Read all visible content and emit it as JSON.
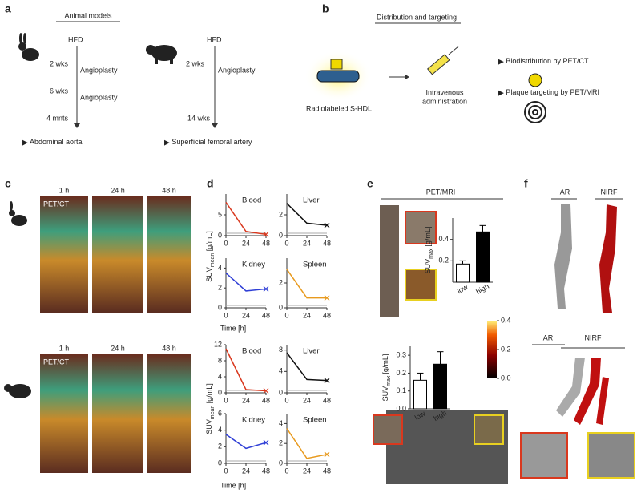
{
  "panels": {
    "a": {
      "letter": "a",
      "title": "Animal models",
      "rabbit": {
        "diet": "HFD",
        "t1": "2 wks",
        "proc1": "Angioplasty",
        "t2": "6 wks",
        "proc2": "Angioplasty",
        "t3": "4 mnts",
        "site": "Abdominal aorta"
      },
      "pig": {
        "diet": "HFD",
        "t1": "2 wks",
        "proc1": "Angioplasty",
        "t2": "14 wks",
        "site": "Superficial femoral artery"
      }
    },
    "b": {
      "letter": "b",
      "title": "Distribution and targeting",
      "agent": "Radiolabeled S-HDL",
      "route1": "Intravenous",
      "route2": "administration",
      "readout1": "Biodistribution by PET/CT",
      "readout2": "Plaque targeting by PET/MRI"
    },
    "c": {
      "letter": "c",
      "times": [
        "1 h",
        "24 h",
        "48 h"
      ],
      "modality": "PET/CT"
    },
    "d": {
      "letter": "d",
      "y_label": "SUV",
      "y_label_sub": "mean",
      "y_label_unit": "[g/mL]",
      "x_label": "Time [h]"
    },
    "e": {
      "letter": "e",
      "modality": "PET/MRI",
      "colorbar": {
        "lim": [
          0,
          0.4
        ],
        "ticks": [
          0.4,
          0.2,
          {
            "value": 0,
            "label": "0.0"
          }
        ]
      }
    },
    "f": {
      "letter": "f",
      "top": [
        "AR",
        "NIRF"
      ],
      "bottom": [
        "AR",
        "NIRF"
      ]
    }
  },
  "chart_data": [
    {
      "type": "line",
      "title": "Blood",
      "color": "#d9381e",
      "x": [
        0,
        24,
        48
      ],
      "values": [
        8,
        1,
        0.3
      ],
      "xlim": [
        0,
        48
      ],
      "xticks": [
        0,
        24,
        48
      ],
      "ylim": [
        0,
        10
      ],
      "yticks": [
        0,
        5
      ]
    },
    {
      "type": "line",
      "title": "Liver",
      "color": "#111111",
      "x": [
        0,
        24,
        48
      ],
      "values": [
        3.1,
        1.2,
        1
      ],
      "xlim": [
        0,
        48
      ],
      "xticks": [
        0,
        24,
        48
      ],
      "ylim": [
        0,
        4
      ],
      "yticks": [
        0,
        2
      ]
    },
    {
      "type": "line",
      "title": "Kidney",
      "color": "#2f3fd6",
      "x": [
        0,
        24,
        48
      ],
      "values": [
        3.5,
        1.7,
        1.9
      ],
      "xlim": [
        0,
        48
      ],
      "xticks": [
        0,
        24,
        48
      ],
      "ylim": [
        0,
        5
      ],
      "yticks": [
        0,
        2,
        4
      ]
    },
    {
      "type": "line",
      "title": "Spleen",
      "color": "#e89a1e",
      "x": [
        0,
        24,
        48
      ],
      "values": [
        3.1,
        0.8,
        0.8
      ],
      "xlim": [
        0,
        48
      ],
      "xticks": [
        0,
        24,
        48
      ],
      "ylim": [
        0,
        4
      ],
      "yticks": [
        0,
        2
      ]
    },
    {
      "type": "line",
      "title": "Blood",
      "color": "#d9381e",
      "x": [
        0,
        24,
        48
      ],
      "values": [
        11,
        0.8,
        0.5
      ],
      "xlim": [
        0,
        48
      ],
      "xticks": [
        0,
        24,
        48
      ],
      "ylim": [
        0,
        12
      ],
      "yticks": [
        0,
        4,
        8,
        12
      ]
    },
    {
      "type": "line",
      "title": "Liver",
      "color": "#111111",
      "x": [
        0,
        24,
        48
      ],
      "values": [
        7.5,
        2.5,
        2.3
      ],
      "xlim": [
        0,
        48
      ],
      "xticks": [
        0,
        24,
        48
      ],
      "ylim": [
        0,
        9
      ],
      "yticks": [
        0,
        4,
        8
      ]
    },
    {
      "type": "line",
      "title": "Kidney",
      "color": "#2f3fd6",
      "x": [
        0,
        24,
        48
      ],
      "values": [
        3.5,
        1.8,
        2.5
      ],
      "xlim": [
        0,
        48
      ],
      "xticks": [
        0,
        24,
        48
      ],
      "ylim": [
        0,
        6
      ],
      "yticks": [
        0,
        2,
        4,
        6
      ]
    },
    {
      "type": "line",
      "title": "Spleen",
      "color": "#e89a1e",
      "x": [
        0,
        24,
        48
      ],
      "values": [
        3.5,
        0.5,
        0.9
      ],
      "xlim": [
        0,
        48
      ],
      "xticks": [
        0,
        24,
        48
      ],
      "ylim": [
        0,
        5
      ],
      "yticks": [
        0,
        2,
        4
      ]
    },
    {
      "type": "bar",
      "y_label": "SUV",
      "y_label_sub": "max",
      "y_label_unit": "[g/mL]",
      "categories": [
        "low",
        "high"
      ],
      "values": [
        0.17,
        0.47
      ],
      "errors": [
        0.03,
        0.06
      ],
      "colors": [
        "#ffffff",
        "#000000"
      ],
      "ylim": [
        0,
        0.6
      ],
      "yticks": [
        0.2,
        0.4
      ]
    },
    {
      "type": "bar",
      "y_label": "SUV",
      "y_label_sub": "max",
      "y_label_unit": "[g/mL]",
      "categories": [
        "low",
        "high"
      ],
      "values": [
        0.16,
        0.25
      ],
      "errors": [
        0.04,
        0.07
      ],
      "colors": [
        "#ffffff",
        "#000000"
      ],
      "ylim": [
        0,
        0.35
      ],
      "yticks": [
        {
          "value": 0,
          "label": "0.0"
        },
        0.1,
        0.2,
        0.3
      ]
    }
  ]
}
